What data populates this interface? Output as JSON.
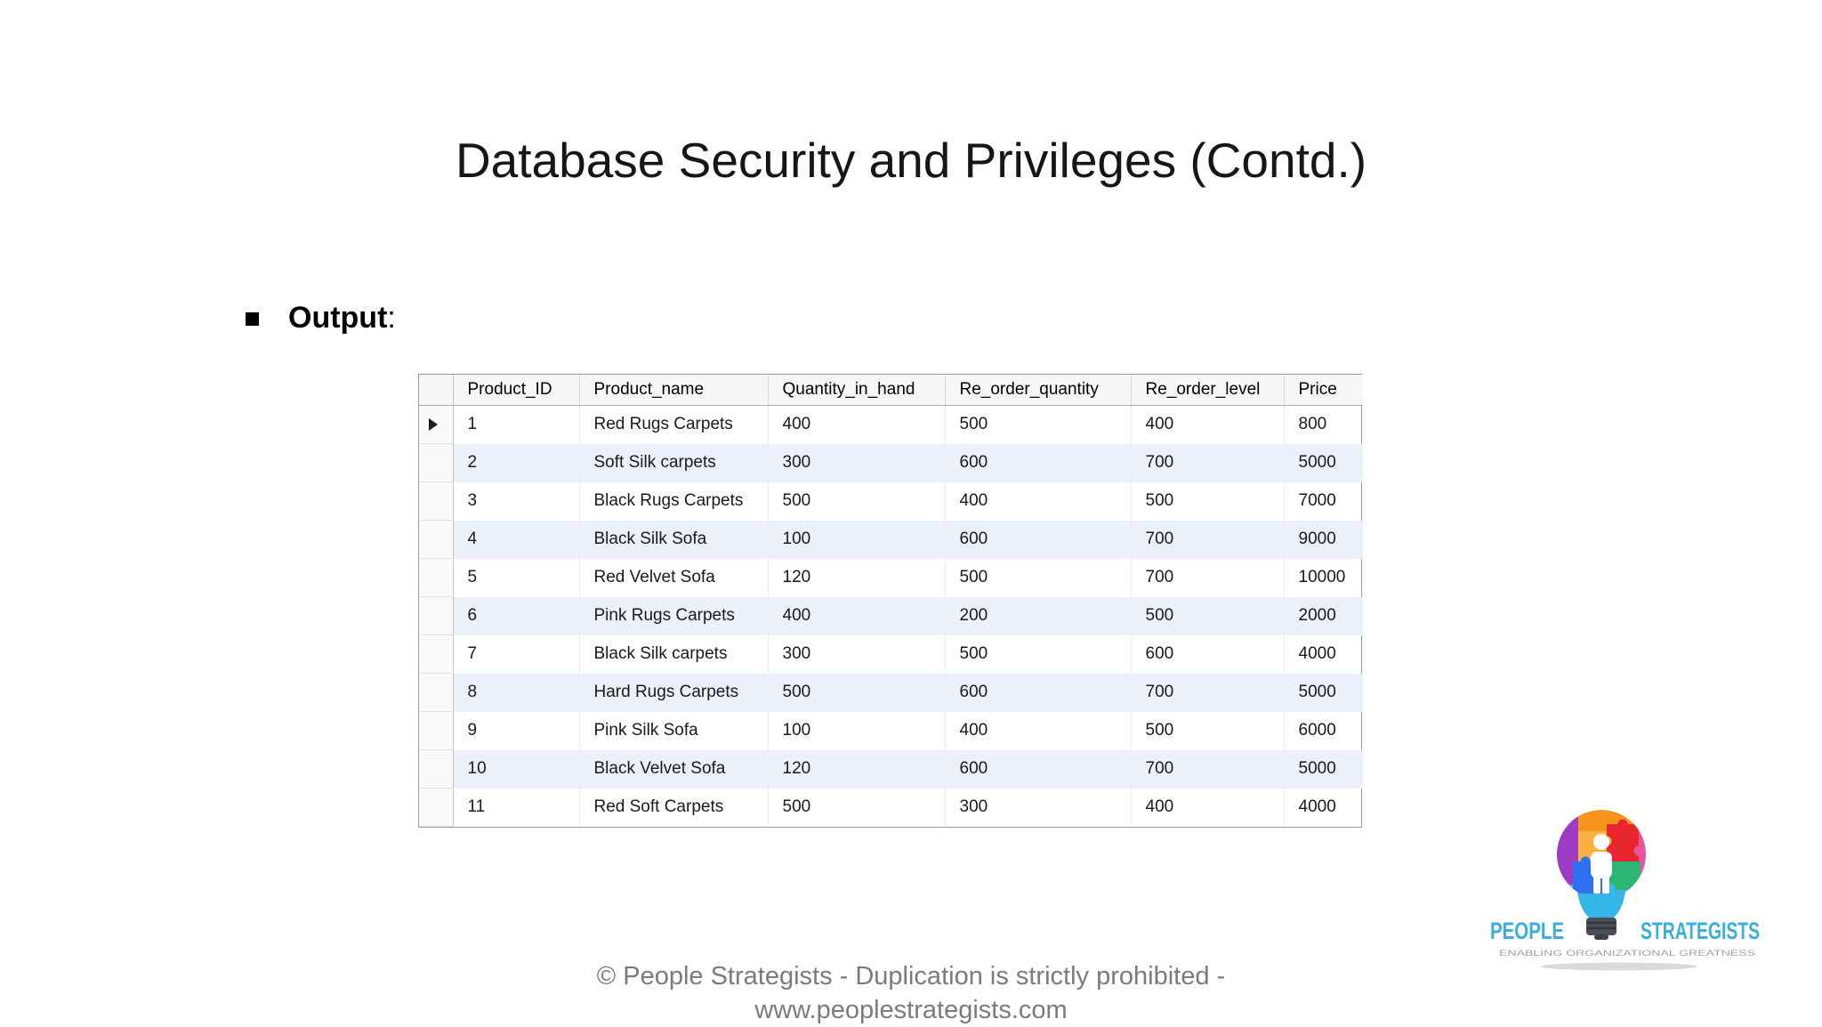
{
  "slide": {
    "title": "Database Security and Privileges (Contd.)",
    "bullet": {
      "label": "Output",
      "colon": ":"
    },
    "footer": {
      "line1": "© People Strategists - Duplication is strictly prohibited -",
      "line2": "www.peoplestrategists.com"
    }
  },
  "results_grid": {
    "columns": [
      "Product_ID",
      "Product_name",
      "Quantity_in_hand",
      "Re_order_quantity",
      "Re_order_level",
      "Price"
    ],
    "rows": [
      [
        "1",
        "Red Rugs Carpets",
        "400",
        "500",
        "400",
        "800"
      ],
      [
        "2",
        "Soft Silk carpets",
        "300",
        "600",
        "700",
        "5000"
      ],
      [
        "3",
        "Black Rugs Carpets",
        "500",
        "400",
        "500",
        "7000"
      ],
      [
        "4",
        "Black Silk Sofa",
        "100",
        "600",
        "700",
        "9000"
      ],
      [
        "5",
        "Red Velvet Sofa",
        "120",
        "500",
        "700",
        "10000"
      ],
      [
        "6",
        "Pink Rugs Carpets",
        "400",
        "200",
        "500",
        "2000"
      ],
      [
        "7",
        "Black Silk carpets",
        "300",
        "500",
        "600",
        "4000"
      ],
      [
        "8",
        "Hard Rugs Carpets",
        "500",
        "600",
        "700",
        "5000"
      ],
      [
        "9",
        "Pink Silk Sofa",
        "100",
        "400",
        "500",
        "6000"
      ],
      [
        "10",
        "Black Velvet Sofa",
        "120",
        "600",
        "700",
        "5000"
      ],
      [
        "11",
        "Red Soft Carpets",
        "500",
        "300",
        "400",
        "4000"
      ]
    ],
    "selected_row_index": 0,
    "colors": {
      "alt_row": "#ecf0fa",
      "header_bg": "#f6f6f6",
      "outer_border": "#9b9b9b"
    }
  },
  "logo": {
    "brand_left": "PEOPLE",
    "brand_right": "STRATEGISTS",
    "tagline": "ENABLING ORGANIZATIONAL GREATNESS",
    "brand_color": "#3aaee0"
  }
}
